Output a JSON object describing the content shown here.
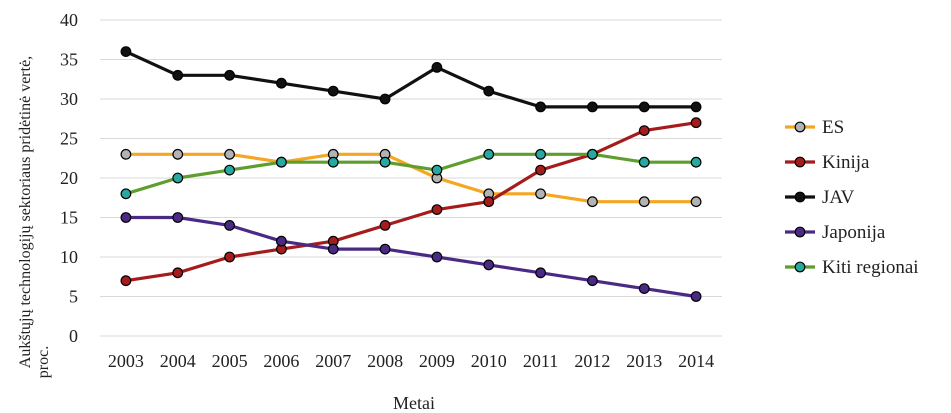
{
  "chart_data": {
    "type": "line",
    "title": "",
    "xlabel": "Metai",
    "ylabel_lines": [
      "Aukštųjų technologijų sektoriaus pridėtinė vertė,",
      "proc."
    ],
    "x": [
      "2003",
      "2004",
      "2005",
      "2006",
      "2007",
      "2008",
      "2009",
      "2010",
      "2011",
      "2012",
      "2013",
      "2014"
    ],
    "ylim": [
      0,
      40
    ],
    "yticks": [
      "0",
      "5",
      "10",
      "15",
      "20",
      "25",
      "30",
      "35",
      "40"
    ],
    "grid": true,
    "legend": "right",
    "series": [
      {
        "name": "ES",
        "color": "#f5a623",
        "marker_fill": "#b3b3b3",
        "values": [
          23,
          23,
          23,
          22,
          23,
          23,
          20,
          18,
          18,
          17,
          17,
          17
        ]
      },
      {
        "name": "Kinija",
        "color": "#a51c1c",
        "marker_fill": "#a51c1c",
        "values": [
          7,
          8,
          10,
          11,
          12,
          14,
          16,
          17,
          21,
          23,
          26,
          27
        ]
      },
      {
        "name": "JAV",
        "color": "#111111",
        "marker_fill": "#111111",
        "values": [
          36,
          33,
          33,
          32,
          31,
          30,
          34,
          31,
          29,
          29,
          29,
          29
        ]
      },
      {
        "name": "Japonija",
        "color": "#4b2a86",
        "marker_fill": "#4b2a86",
        "values": [
          15,
          15,
          14,
          12,
          11,
          11,
          10,
          9,
          8,
          7,
          6,
          5
        ]
      },
      {
        "name": "Kiti regionai",
        "color": "#5e9e2e",
        "marker_fill": "#27a9a0",
        "values": [
          18,
          20,
          21,
          22,
          22,
          22,
          21,
          23,
          23,
          23,
          22,
          22
        ]
      }
    ]
  }
}
